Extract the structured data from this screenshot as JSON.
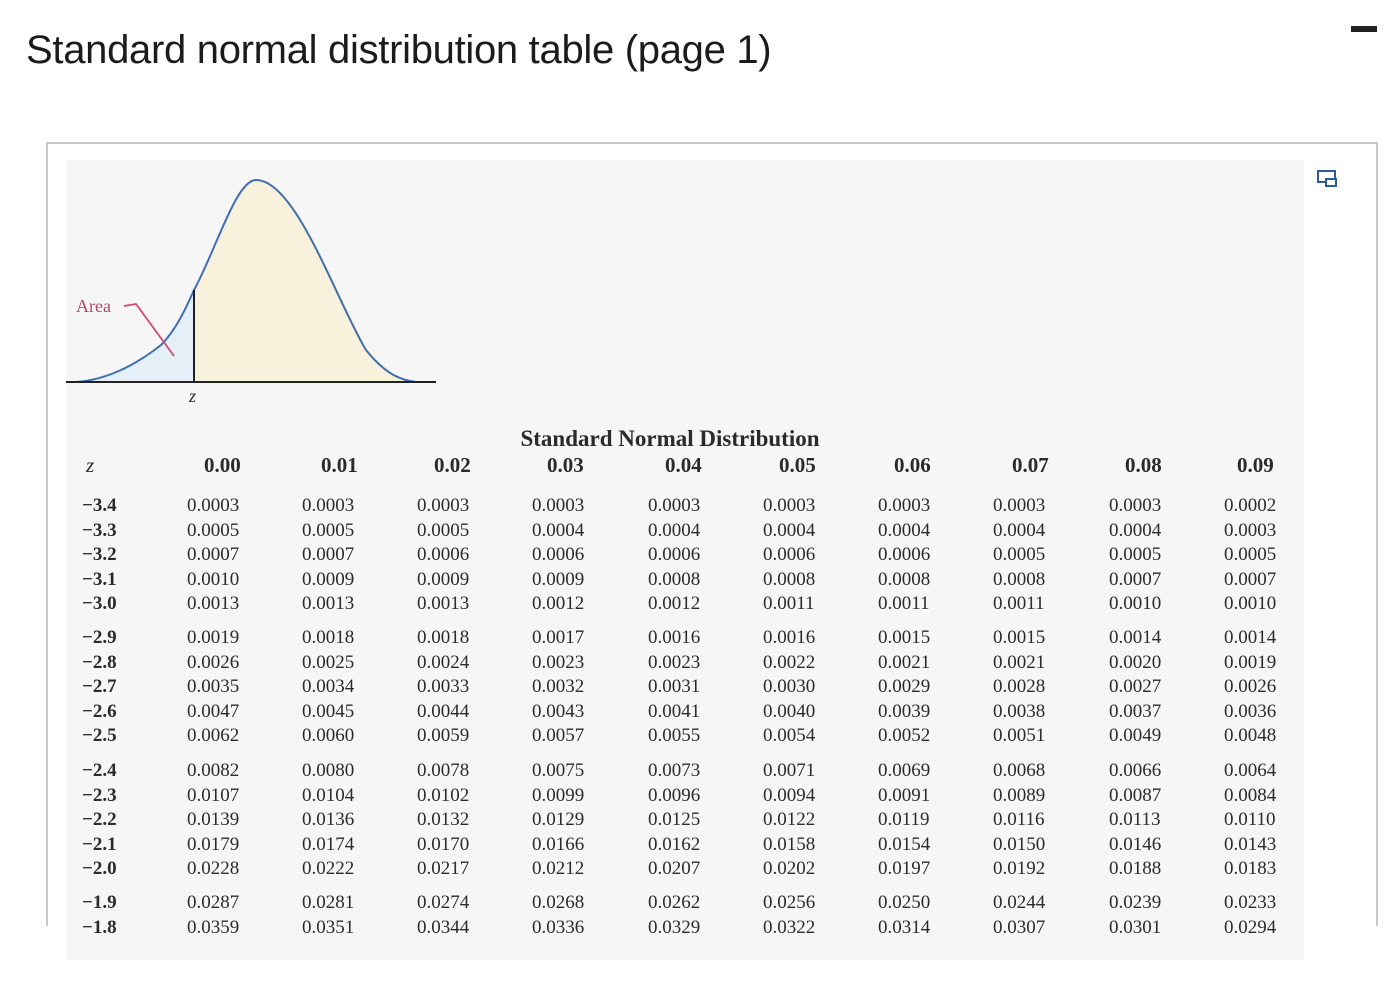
{
  "page": {
    "title": "Standard normal distribution table (page 1)"
  },
  "figure": {
    "area_label": "Area",
    "z_label": "z"
  },
  "table": {
    "title": "Standard Normal Distribution",
    "z_header": "z",
    "columns": [
      "0.00",
      "0.01",
      "0.02",
      "0.03",
      "0.04",
      "0.05",
      "0.06",
      "0.07",
      "0.08",
      "0.09"
    ],
    "groups": [
      {
        "z": [
          "−3.4",
          "−3.3",
          "−3.2",
          "−3.1",
          "−3.0"
        ],
        "rows": [
          [
            "0.0003",
            "0.0003",
            "0.0003",
            "0.0003",
            "0.0003",
            "0.0003",
            "0.0003",
            "0.0003",
            "0.0003",
            "0.0002"
          ],
          [
            "0.0005",
            "0.0005",
            "0.0005",
            "0.0004",
            "0.0004",
            "0.0004",
            "0.0004",
            "0.0004",
            "0.0004",
            "0.0003"
          ],
          [
            "0.0007",
            "0.0007",
            "0.0006",
            "0.0006",
            "0.0006",
            "0.0006",
            "0.0006",
            "0.0005",
            "0.0005",
            "0.0005"
          ],
          [
            "0.0010",
            "0.0009",
            "0.0009",
            "0.0009",
            "0.0008",
            "0.0008",
            "0.0008",
            "0.0008",
            "0.0007",
            "0.0007"
          ],
          [
            "0.0013",
            "0.0013",
            "0.0013",
            "0.0012",
            "0.0012",
            "0.0011",
            "0.0011",
            "0.0011",
            "0.0010",
            "0.0010"
          ]
        ]
      },
      {
        "z": [
          "−2.9",
          "−2.8",
          "−2.7",
          "−2.6",
          "−2.5"
        ],
        "rows": [
          [
            "0.0019",
            "0.0018",
            "0.0018",
            "0.0017",
            "0.0016",
            "0.0016",
            "0.0015",
            "0.0015",
            "0.0014",
            "0.0014"
          ],
          [
            "0.0026",
            "0.0025",
            "0.0024",
            "0.0023",
            "0.0023",
            "0.0022",
            "0.0021",
            "0.0021",
            "0.0020",
            "0.0019"
          ],
          [
            "0.0035",
            "0.0034",
            "0.0033",
            "0.0032",
            "0.0031",
            "0.0030",
            "0.0029",
            "0.0028",
            "0.0027",
            "0.0026"
          ],
          [
            "0.0047",
            "0.0045",
            "0.0044",
            "0.0043",
            "0.0041",
            "0.0040",
            "0.0039",
            "0.0038",
            "0.0037",
            "0.0036"
          ],
          [
            "0.0062",
            "0.0060",
            "0.0059",
            "0.0057",
            "0.0055",
            "0.0054",
            "0.0052",
            "0.0051",
            "0.0049",
            "0.0048"
          ]
        ]
      },
      {
        "z": [
          "−2.4",
          "−2.3",
          "−2.2",
          "−2.1",
          "−2.0"
        ],
        "rows": [
          [
            "0.0082",
            "0.0080",
            "0.0078",
            "0.0075",
            "0.0073",
            "0.0071",
            "0.0069",
            "0.0068",
            "0.0066",
            "0.0064"
          ],
          [
            "0.0107",
            "0.0104",
            "0.0102",
            "0.0099",
            "0.0096",
            "0.0094",
            "0.0091",
            "0.0089",
            "0.0087",
            "0.0084"
          ],
          [
            "0.0139",
            "0.0136",
            "0.0132",
            "0.0129",
            "0.0125",
            "0.0122",
            "0.0119",
            "0.0116",
            "0.0113",
            "0.0110"
          ],
          [
            "0.0179",
            "0.0174",
            "0.0170",
            "0.0166",
            "0.0162",
            "0.0158",
            "0.0154",
            "0.0150",
            "0.0146",
            "0.0143"
          ],
          [
            "0.0228",
            "0.0222",
            "0.0217",
            "0.0212",
            "0.0207",
            "0.0202",
            "0.0197",
            "0.0192",
            "0.0188",
            "0.0183"
          ]
        ]
      },
      {
        "z": [
          "−1.9",
          "−1.8"
        ],
        "rows": [
          [
            "0.0287",
            "0.0281",
            "0.0274",
            "0.0268",
            "0.0262",
            "0.0256",
            "0.0250",
            "0.0244",
            "0.0239",
            "0.0233"
          ],
          [
            "0.0359",
            "0.0351",
            "0.0344",
            "0.0336",
            "0.0329",
            "0.0322",
            "0.0314",
            "0.0307",
            "0.0301",
            "0.0294"
          ]
        ]
      }
    ]
  },
  "colors": {
    "curve": "#3f6fb0",
    "tail": "#e5eff7",
    "body": "#f8f1dc",
    "pointer": "#d24a72"
  }
}
